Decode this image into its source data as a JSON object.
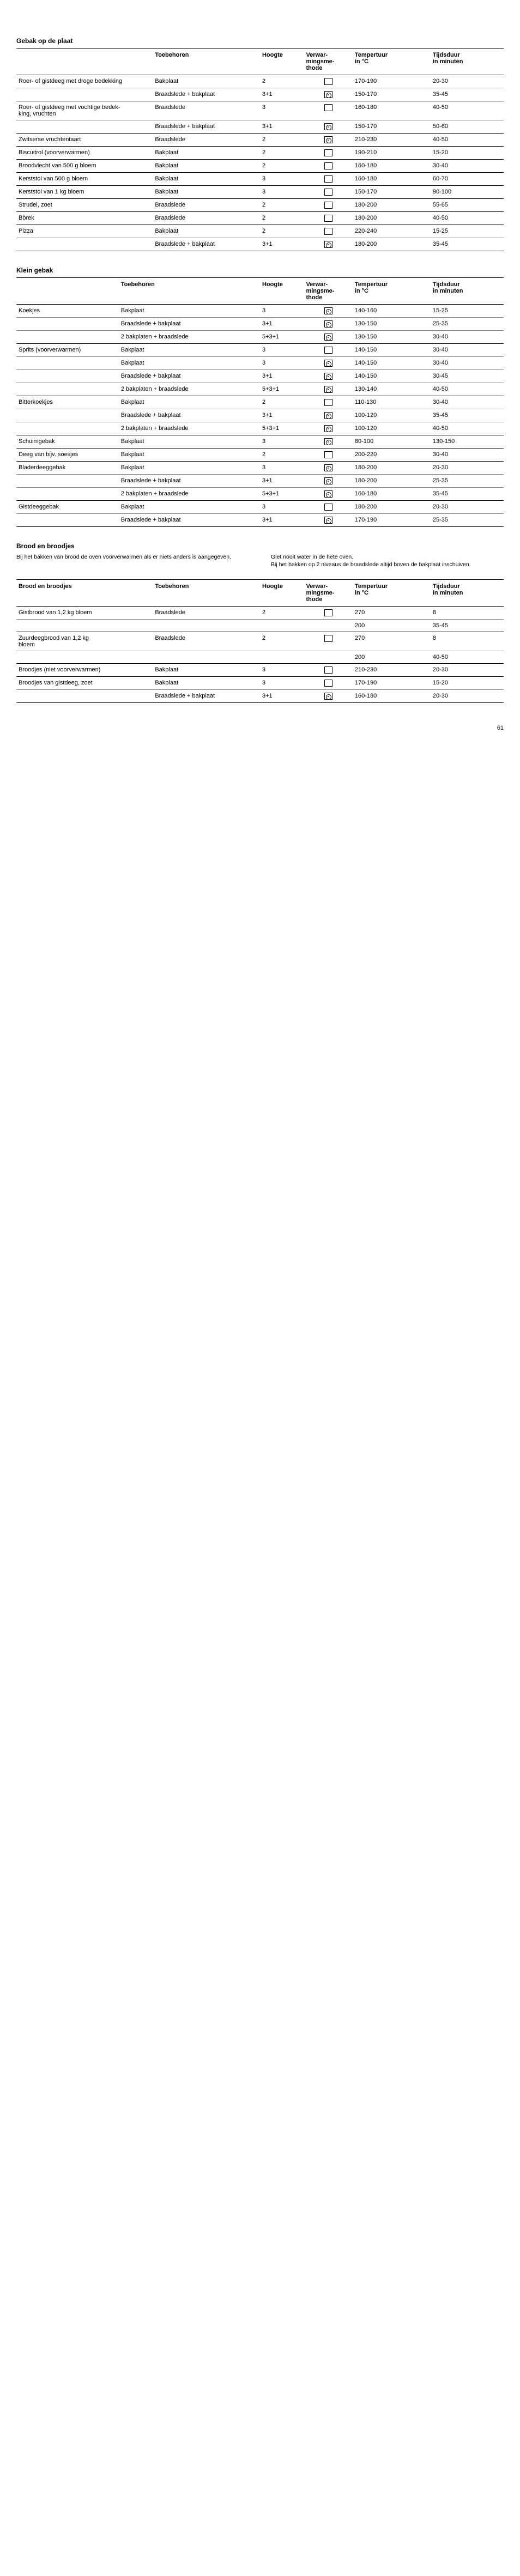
{
  "page_number": "61",
  "table1": {
    "title": "Gebak op de plaat",
    "headers": {
      "desc": "",
      "acc": "Toebehoren",
      "height": "Hoogte",
      "method": "Verwar-\nmingsme-\nthode",
      "temp": "Tempertuur\nin °C",
      "time": "Tijdsduur\nin minuten"
    },
    "rows": [
      {
        "desc": "Roer- of gistdeeg met droge bedekking",
        "acc": "Bakplaat",
        "h": "2",
        "m": "box",
        "temp": "170-190",
        "time": "20-30",
        "last": false
      },
      {
        "desc": "",
        "acc": "Braadslede + bakplaat",
        "h": "3+1",
        "m": "fan",
        "temp": "150-170",
        "time": "35-45",
        "last": true
      },
      {
        "desc": "Roer- of gistdeeg met vochtige bedek-\nking, vruchten",
        "acc": "Braadslede",
        "h": "3",
        "m": "box",
        "temp": "160-180",
        "time": "40-50",
        "last": false
      },
      {
        "desc": "",
        "acc": "Braadslede + bakplaat",
        "h": "3+1",
        "m": "fan",
        "temp": "150-170",
        "time": "50-60",
        "last": true
      },
      {
        "desc": "Zwitserse vruchtentaart",
        "acc": "Braadslede",
        "h": "2",
        "m": "fan",
        "temp": "210-230",
        "time": "40-50",
        "last": true
      },
      {
        "desc": "Biscuitrol  (voorverwarmen)",
        "acc": "Bakplaat",
        "h": "2",
        "m": "box",
        "temp": "190-210",
        "time": "15-20",
        "last": true
      },
      {
        "desc": "Broodvlecht van 500 g bloem",
        "acc": "Bakplaat",
        "h": "2",
        "m": "box",
        "temp": "160-180",
        "time": "30-40",
        "last": true
      },
      {
        "desc": "Kerststol van 500 g bloem",
        "acc": "Bakplaat",
        "h": "3",
        "m": "box",
        "temp": "160-180",
        "time": "60-70",
        "last": true
      },
      {
        "desc": "Kerststol van 1 kg bloem",
        "acc": "Bakplaat",
        "h": "3",
        "m": "box",
        "temp": "150-170",
        "time": "90-100",
        "last": true
      },
      {
        "desc": "Strudel, zoet",
        "acc": "Braadslede",
        "h": "2",
        "m": "box",
        "temp": "180-200",
        "time": "55-65",
        "last": true
      },
      {
        "desc": "Börek",
        "acc": "Braadslede",
        "h": "2",
        "m": "box",
        "temp": "180-200",
        "time": "40-50",
        "last": true
      },
      {
        "desc": "Pizza",
        "acc": "Bakplaat",
        "h": "2",
        "m": "box",
        "temp": "220-240",
        "time": "15-25",
        "last": false
      },
      {
        "desc": "",
        "acc": "Braadslede + bakplaat",
        "h": "3+1",
        "m": "fan",
        "temp": "180-200",
        "time": "35-45",
        "last": true
      }
    ]
  },
  "table2": {
    "title": "Klein gebak",
    "headers": {
      "desc": "",
      "acc": "Toebehoren",
      "height": "Hoogte",
      "method": "Verwar-\nmingsme-\nthode",
      "temp": "Tempertuur\nin °C",
      "time": "Tijdsduur\nin minuten"
    },
    "rows": [
      {
        "desc": "Koekjes",
        "acc": "Bakplaat",
        "h": "3",
        "m": "fan",
        "temp": "140-160",
        "time": "15-25",
        "last": false
      },
      {
        "desc": "",
        "acc": "Braadslede + bakplaat",
        "h": "3+1",
        "m": "fan",
        "temp": "130-150",
        "time": "25-35",
        "last": false
      },
      {
        "desc": "",
        "acc": "2 bakplaten + braadslede",
        "h": "5+3+1",
        "m": "fan",
        "temp": "130-150",
        "time": "30-40",
        "last": true
      },
      {
        "desc": "Sprits (voorverwarmen)",
        "acc": "Bakplaat",
        "h": "3",
        "m": "box",
        "temp": "140-150",
        "time": "30-40",
        "last": false
      },
      {
        "desc": "",
        "acc": "Bakplaat",
        "h": "3",
        "m": "fan",
        "temp": "140-150",
        "time": "30-40",
        "last": false
      },
      {
        "desc": "",
        "acc": "Braadslede + bakplaat",
        "h": "3+1",
        "m": "fan",
        "temp": "140-150",
        "time": "30-45",
        "last": false
      },
      {
        "desc": "",
        "acc": "2 bakplaten + braadslede",
        "h": "5+3+1",
        "m": "fan",
        "temp": "130-140",
        "time": "40-50",
        "last": true
      },
      {
        "desc": "Bitterkoekjes",
        "acc": "Bakplaat",
        "h": "2",
        "m": "box",
        "temp": "110-130",
        "time": "30-40",
        "last": false
      },
      {
        "desc": "",
        "acc": "Braadslede + bakplaat",
        "h": "3+1",
        "m": "fan",
        "temp": "100-120",
        "time": "35-45",
        "last": false
      },
      {
        "desc": "",
        "acc": "2 bakplaten + braadslede",
        "h": "5+3+1",
        "m": "fan",
        "temp": "100-120",
        "time": "40-50",
        "last": true
      },
      {
        "desc": "Schuimgebak",
        "acc": "Bakplaat",
        "h": "3",
        "m": "fan",
        "temp": "80-100",
        "time": "130-150",
        "last": true
      },
      {
        "desc": "Deeg van bijv. soesjes",
        "acc": "Bakplaat",
        "h": "2",
        "m": "box",
        "temp": "200-220",
        "time": "30-40",
        "last": true
      },
      {
        "desc": "Bladerdeeggebak",
        "acc": "Bakplaat",
        "h": "3",
        "m": "fan",
        "temp": "180-200",
        "time": "20-30",
        "last": false
      },
      {
        "desc": "",
        "acc": "Braadslede + bakplaat",
        "h": "3+1",
        "m": "fan",
        "temp": "180-200",
        "time": "25-35",
        "last": false
      },
      {
        "desc": "",
        "acc": "2 bakplaten + braadslede",
        "h": "5+3+1",
        "m": "fan",
        "temp": "160-180",
        "time": "35-45",
        "last": true
      },
      {
        "desc": "Gistdeeggebak",
        "acc": "Bakplaat",
        "h": "3",
        "m": "box",
        "temp": "180-200",
        "time": "20-30",
        "last": false
      },
      {
        "desc": "",
        "acc": "Braadslede + bakplaat",
        "h": "3+1",
        "m": "fan",
        "temp": "170-190",
        "time": "25-35",
        "last": true
      }
    ]
  },
  "bread_section": {
    "heading": "Brood en broodjes",
    "note_left": "Bij het bakken van brood de oven voorverwarmen als er niets anders is aangegeven.",
    "note_right_top": "Giet nooit water in de hete oven.",
    "note_right_bottom": "Bij het bakken op 2 niveaus de braadslede altijd boven de bakplaat inschuiven."
  },
  "table3": {
    "title": "Brood en broodjes",
    "headers": {
      "desc": "",
      "acc": "Toebehoren",
      "height": "Hoogte",
      "method": "Verwar-\nmingsme-\nthode",
      "temp": "Tempertuur\nin °C",
      "time": "Tijdsduur\nin minuten"
    },
    "rows": [
      {
        "desc": "Gistbrood van 1,2 kg bloem",
        "acc": "Braadslede",
        "h": "2",
        "m": "box",
        "temp": "270",
        "time": "8",
        "last": false
      },
      {
        "desc": "",
        "acc": "",
        "h": "",
        "m": "",
        "temp": "200",
        "time": "35-45",
        "last": true
      },
      {
        "desc": "Zuurdeegbrood van 1,2 kg\nbloem",
        "acc": "Braadslede",
        "h": "2",
        "m": "box",
        "temp": "270",
        "time": "8",
        "last": false
      },
      {
        "desc": "",
        "acc": "",
        "h": "",
        "m": "",
        "temp": "200",
        "time": "40-50",
        "last": true
      },
      {
        "desc": "Broodjes (niet voorverwarmen)",
        "acc": "Bakplaat",
        "h": "3",
        "m": "box",
        "temp": "210-230",
        "time": "20-30",
        "last": true
      },
      {
        "desc": "Broodjes van gistdeeg, zoet",
        "acc": "Bakplaat",
        "h": "3",
        "m": "box",
        "temp": "170-190",
        "time": "15-20",
        "last": false
      },
      {
        "desc": "",
        "acc": "Braadslede + bakplaat",
        "h": "3+1",
        "m": "fan",
        "temp": "160-180",
        "time": "20-30",
        "last": true
      }
    ]
  }
}
